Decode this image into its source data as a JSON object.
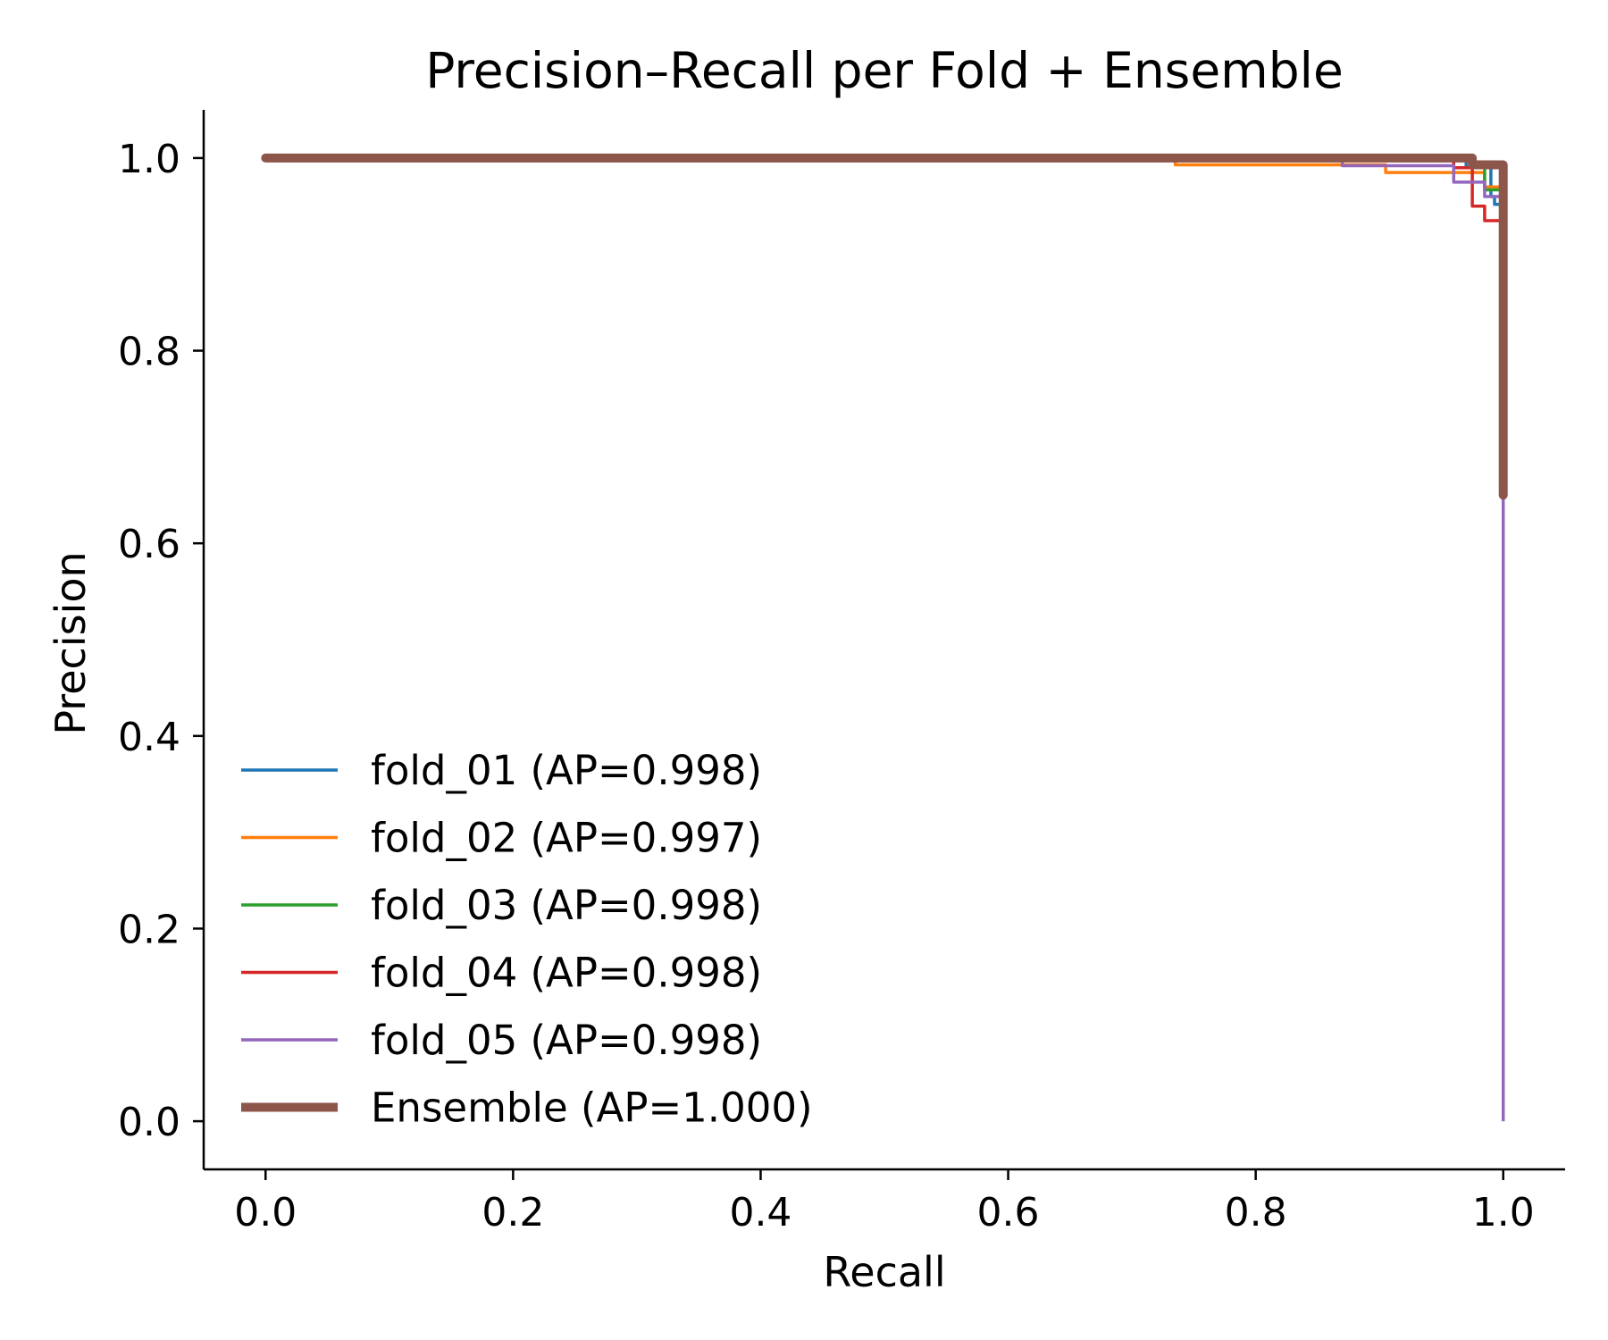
{
  "chart_data": {
    "type": "line",
    "title": "Precision–Recall per Fold + Ensemble",
    "xlabel": "Recall",
    "ylabel": "Precision",
    "xlim": [
      -0.05,
      1.05
    ],
    "ylim": [
      -0.05,
      1.05
    ],
    "xticks": [
      "0.0",
      "0.2",
      "0.4",
      "0.6",
      "0.8",
      "1.0"
    ],
    "yticks": [
      "0.0",
      "0.2",
      "0.4",
      "0.6",
      "0.8",
      "1.0"
    ],
    "grid": false,
    "legend_position": "lower-left",
    "series": [
      {
        "name": "fold_01 (AP=0.998)",
        "color": "#1f77b4",
        "x": [
          0.0,
          0.97,
          0.97,
          0.99,
          0.99,
          0.993,
          0.993,
          1.0,
          1.0
        ],
        "y": [
          1.0,
          1.0,
          0.99,
          0.99,
          0.96,
          0.96,
          0.952,
          0.952,
          0.65
        ]
      },
      {
        "name": "fold_02 (AP=0.997)",
        "color": "#ff7f0e",
        "x": [
          0.0,
          0.735,
          0.735,
          0.905,
          0.905,
          0.985,
          0.985,
          1.0,
          1.0
        ],
        "y": [
          1.0,
          1.0,
          0.993,
          0.993,
          0.985,
          0.985,
          0.97,
          0.97,
          0.65
        ]
      },
      {
        "name": "fold_03 (AP=0.998)",
        "color": "#2ca02c",
        "x": [
          0.0,
          0.975,
          0.975,
          0.985,
          0.985,
          1.0,
          1.0
        ],
        "y": [
          1.0,
          1.0,
          0.99,
          0.99,
          0.967,
          0.967,
          0.65
        ]
      },
      {
        "name": "fold_04 (AP=0.998)",
        "color": "#d62728",
        "x": [
          0.0,
          0.96,
          0.96,
          0.975,
          0.975,
          0.985,
          0.985,
          1.0,
          1.0
        ],
        "y": [
          1.0,
          1.0,
          0.99,
          0.99,
          0.95,
          0.95,
          0.935,
          0.935,
          0.65
        ]
      },
      {
        "name": "fold_05 (AP=0.998)",
        "color": "#9467bd",
        "x": [
          0.0,
          0.87,
          0.87,
          0.96,
          0.96,
          0.985,
          0.985,
          1.0,
          1.0
        ],
        "y": [
          1.0,
          1.0,
          0.992,
          0.992,
          0.975,
          0.975,
          0.96,
          0.96,
          0.0
        ]
      },
      {
        "name": "Ensemble (AP=1.000)",
        "color": "#8c564b",
        "thick": true,
        "x": [
          0.0,
          0.975,
          0.975,
          1.0,
          1.0
        ],
        "y": [
          1.0,
          1.0,
          0.993,
          0.993,
          0.65
        ]
      }
    ]
  }
}
